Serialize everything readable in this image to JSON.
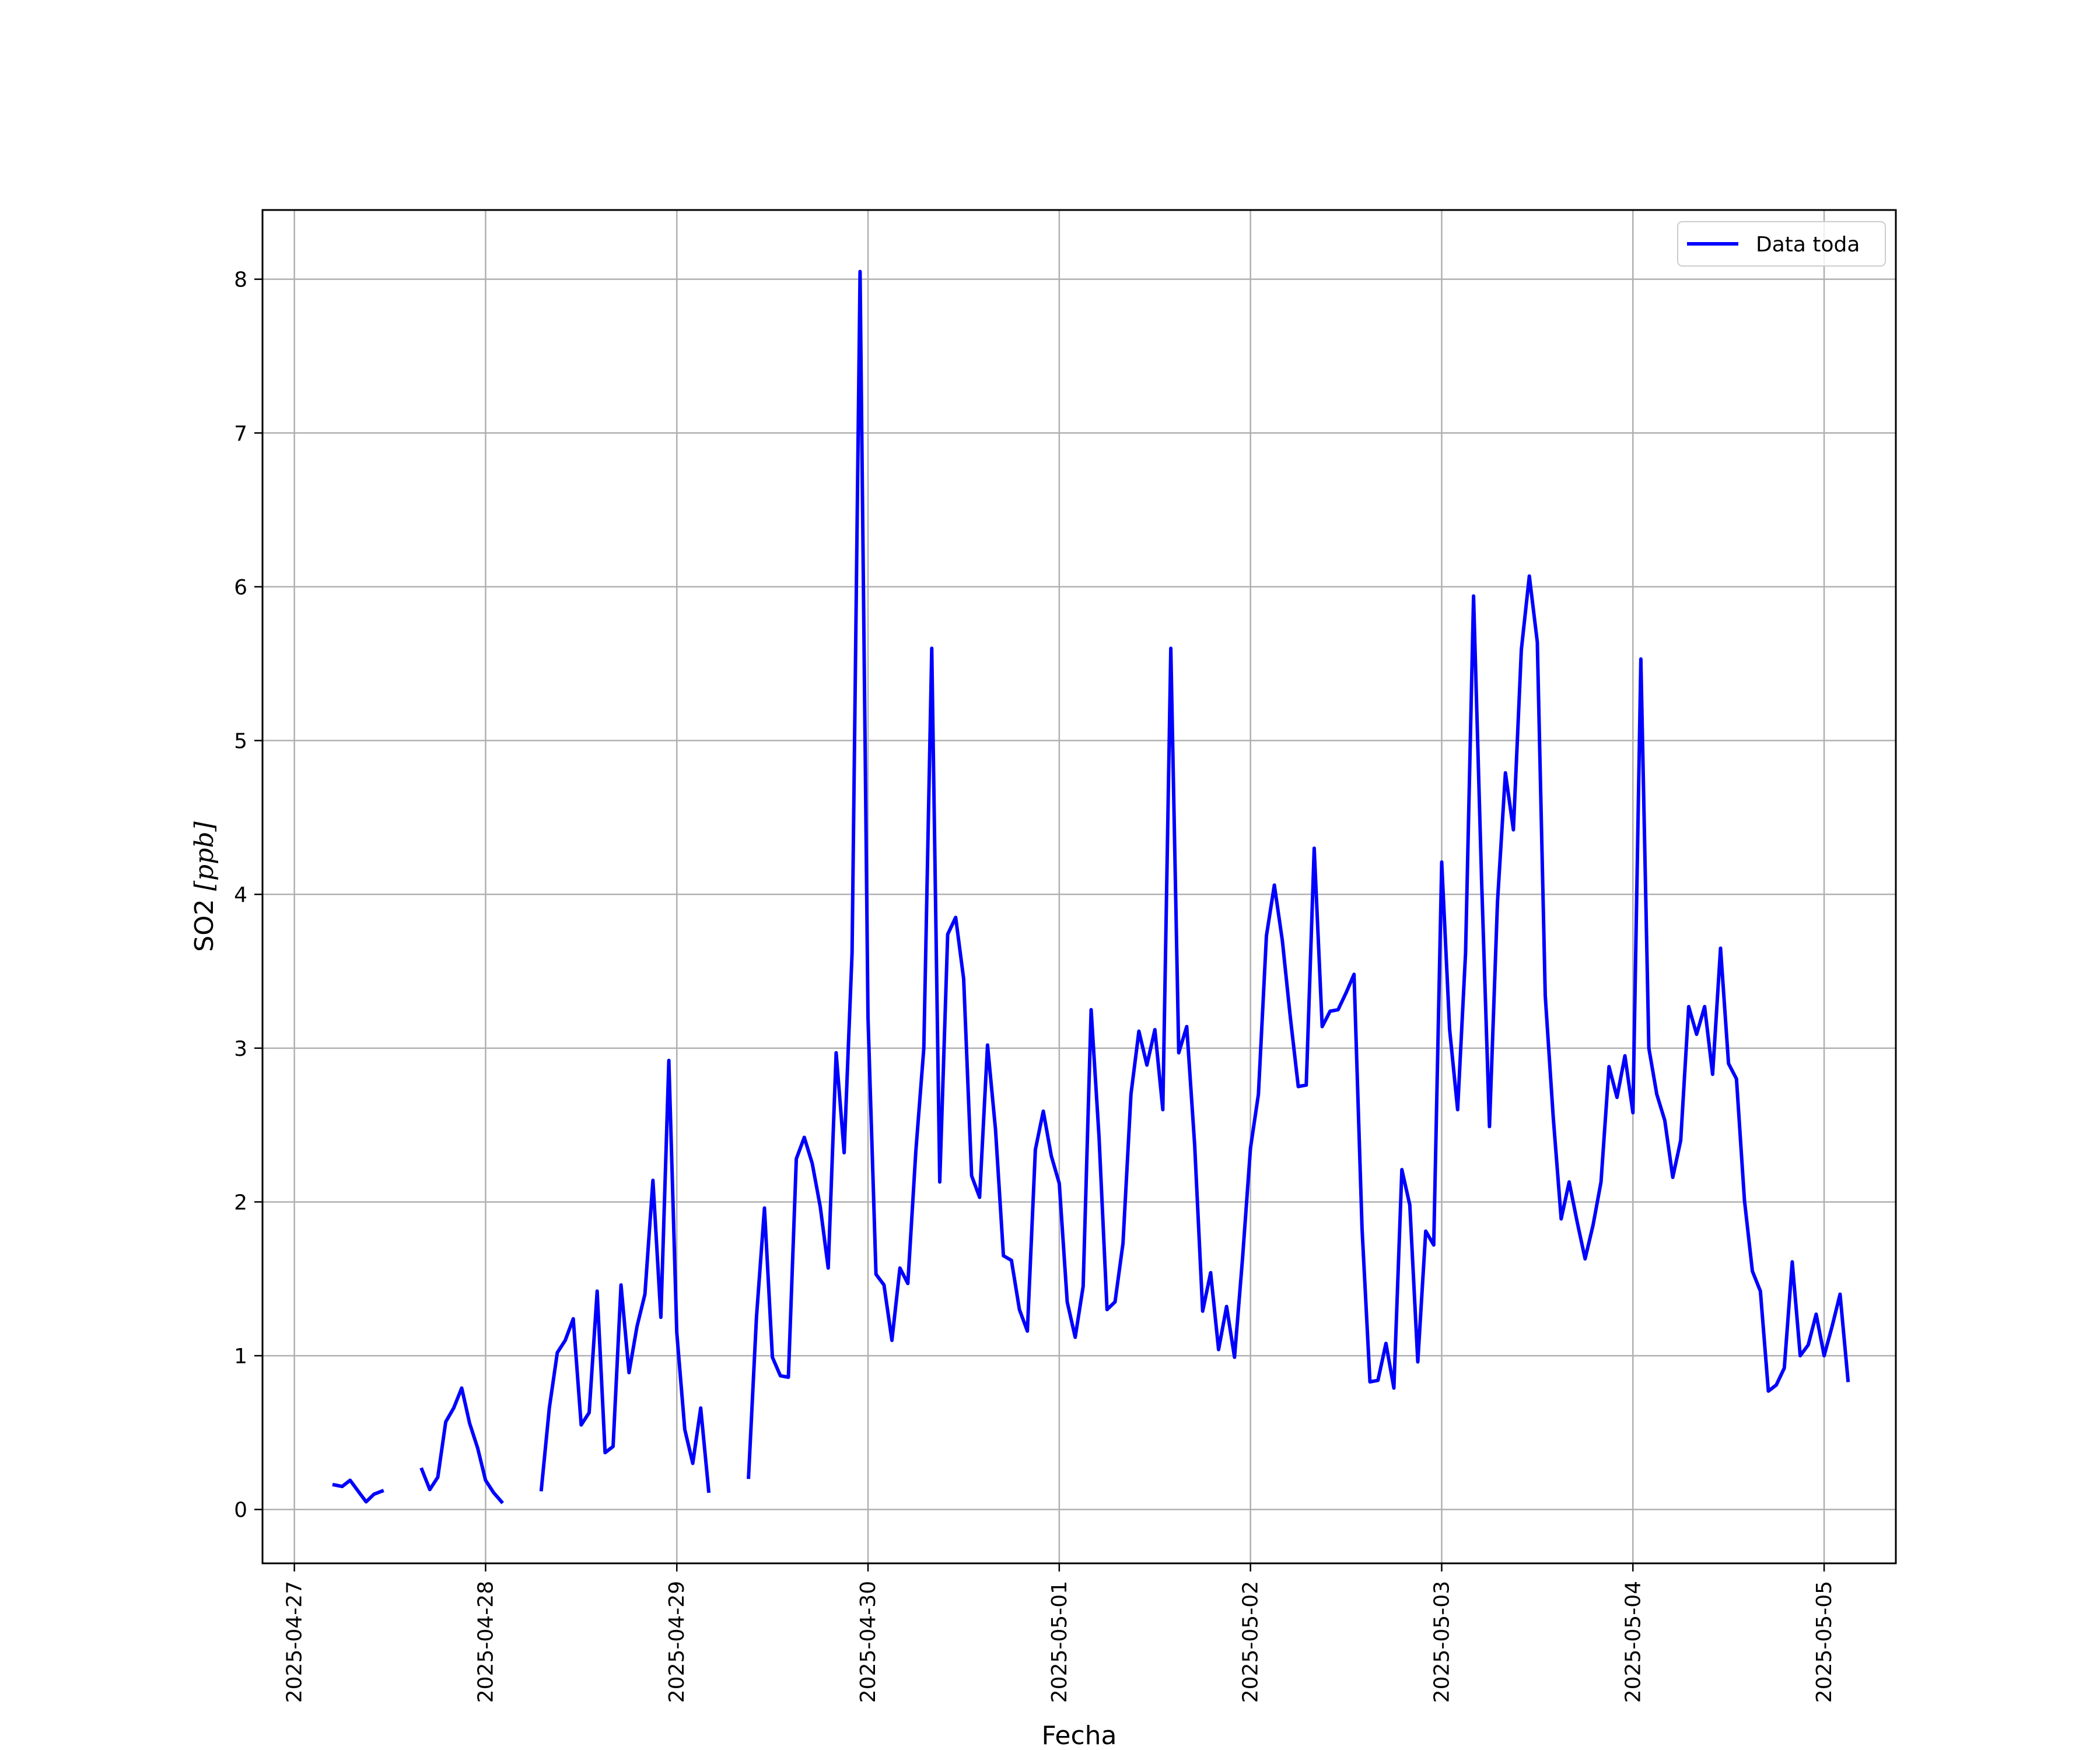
{
  "chart_data": {
    "type": "line",
    "xlabel": "Fecha",
    "ylabel_main": "SO2 ",
    "ylabel_unit": "[ppb]",
    "legend_position": "top-right",
    "grid": true,
    "xlim": [
      "2025-04-26T20:00",
      "2025-05-05T09:00"
    ],
    "ylim": [
      -0.35,
      8.45
    ],
    "x_ticks": [
      "2025-04-27",
      "2025-04-28",
      "2025-04-29",
      "2025-04-30",
      "2025-05-01",
      "2025-05-02",
      "2025-05-03",
      "2025-05-04",
      "2025-05-05"
    ],
    "y_ticks": [
      0,
      1,
      2,
      3,
      4,
      5,
      6,
      7,
      8
    ],
    "line_color": "#0000ff",
    "series": [
      {
        "name": "Data toda",
        "points": [
          [
            "2025-04-27T05:00",
            0.16
          ],
          [
            "2025-04-27T06:00",
            0.15
          ],
          [
            "2025-04-27T07:00",
            0.19
          ],
          [
            "2025-04-27T08:00",
            0.12
          ],
          [
            "2025-04-27T09:00",
            0.05
          ],
          [
            "2025-04-27T10:00",
            0.1
          ],
          [
            "2025-04-27T11:00",
            0.12
          ],
          [
            "2025-04-27T12:00",
            null
          ],
          [
            "2025-04-27T15:00",
            null
          ],
          [
            "2025-04-27T16:00",
            0.26
          ],
          [
            "2025-04-27T17:00",
            0.13
          ],
          [
            "2025-04-27T18:00",
            0.21
          ],
          [
            "2025-04-27T19:00",
            0.57
          ],
          [
            "2025-04-27T20:00",
            0.66
          ],
          [
            "2025-04-27T21:00",
            0.79
          ],
          [
            "2025-04-27T22:00",
            0.56
          ],
          [
            "2025-04-27T23:00",
            0.4
          ],
          [
            "2025-04-28T00:00",
            0.19
          ],
          [
            "2025-04-28T01:00",
            0.11
          ],
          [
            "2025-04-28T02:00",
            0.05
          ],
          [
            "2025-04-28T03:00",
            null
          ],
          [
            "2025-04-28T06:00",
            null
          ],
          [
            "2025-04-28T07:00",
            0.13
          ],
          [
            "2025-04-28T08:00",
            0.66
          ],
          [
            "2025-04-28T09:00",
            1.02
          ],
          [
            "2025-04-28T10:00",
            1.1
          ],
          [
            "2025-04-28T11:00",
            1.24
          ],
          [
            "2025-04-28T12:00",
            0.55
          ],
          [
            "2025-04-28T13:00",
            0.63
          ],
          [
            "2025-04-28T14:00",
            1.42
          ],
          [
            "2025-04-28T15:00",
            0.37
          ],
          [
            "2025-04-28T16:00",
            0.41
          ],
          [
            "2025-04-28T17:00",
            1.46
          ],
          [
            "2025-04-28T18:00",
            0.89
          ],
          [
            "2025-04-28T19:00",
            1.19
          ],
          [
            "2025-04-28T20:00",
            1.4
          ],
          [
            "2025-04-28T21:00",
            2.14
          ],
          [
            "2025-04-28T22:00",
            1.25
          ],
          [
            "2025-04-28T23:00",
            2.92
          ],
          [
            "2025-04-29T00:00",
            1.15
          ],
          [
            "2025-04-29T01:00",
            0.52
          ],
          [
            "2025-04-29T02:00",
            0.3
          ],
          [
            "2025-04-29T03:00",
            0.66
          ],
          [
            "2025-04-29T04:00",
            0.12
          ],
          [
            "2025-04-29T05:00",
            null
          ],
          [
            "2025-04-29T08:00",
            null
          ],
          [
            "2025-04-29T09:00",
            0.21
          ],
          [
            "2025-04-29T10:00",
            1.25
          ],
          [
            "2025-04-29T11:00",
            1.96
          ],
          [
            "2025-04-29T12:00",
            0.99
          ],
          [
            "2025-04-29T13:00",
            0.87
          ],
          [
            "2025-04-29T14:00",
            0.86
          ],
          [
            "2025-04-29T15:00",
            2.28
          ],
          [
            "2025-04-29T16:00",
            2.42
          ],
          [
            "2025-04-29T17:00",
            2.25
          ],
          [
            "2025-04-29T18:00",
            1.97
          ],
          [
            "2025-04-29T19:00",
            1.57
          ],
          [
            "2025-04-29T20:00",
            2.97
          ],
          [
            "2025-04-29T21:00",
            2.32
          ],
          [
            "2025-04-29T22:00",
            3.62
          ],
          [
            "2025-04-29T23:00",
            8.05
          ],
          [
            "2025-04-30T00:00",
            3.2
          ],
          [
            "2025-04-30T01:00",
            1.53
          ],
          [
            "2025-04-30T02:00",
            1.46
          ],
          [
            "2025-04-30T03:00",
            1.1
          ],
          [
            "2025-04-30T04:00",
            1.57
          ],
          [
            "2025-04-30T05:00",
            1.47
          ],
          [
            "2025-04-30T06:00",
            2.33
          ],
          [
            "2025-04-30T07:00",
            3.0
          ],
          [
            "2025-04-30T08:00",
            5.6
          ],
          [
            "2025-04-30T09:00",
            2.13
          ],
          [
            "2025-04-30T10:00",
            3.74
          ],
          [
            "2025-04-30T11:00",
            3.85
          ],
          [
            "2025-04-30T12:00",
            3.45
          ],
          [
            "2025-04-30T13:00",
            2.17
          ],
          [
            "2025-04-30T14:00",
            2.03
          ],
          [
            "2025-04-30T15:00",
            3.02
          ],
          [
            "2025-04-30T16:00",
            2.47
          ],
          [
            "2025-04-30T17:00",
            1.65
          ],
          [
            "2025-04-30T18:00",
            1.62
          ],
          [
            "2025-04-30T19:00",
            1.3
          ],
          [
            "2025-04-30T20:00",
            1.16
          ],
          [
            "2025-04-30T21:00",
            2.34
          ],
          [
            "2025-04-30T22:00",
            2.59
          ],
          [
            "2025-04-30T23:00",
            2.3
          ],
          [
            "2025-05-01T00:00",
            2.12
          ],
          [
            "2025-05-01T01:00",
            1.35
          ],
          [
            "2025-05-01T02:00",
            1.12
          ],
          [
            "2025-05-01T03:00",
            1.45
          ],
          [
            "2025-05-01T04:00",
            3.25
          ],
          [
            "2025-05-01T05:00",
            2.42
          ],
          [
            "2025-05-01T06:00",
            1.3
          ],
          [
            "2025-05-01T07:00",
            1.35
          ],
          [
            "2025-05-01T08:00",
            1.73
          ],
          [
            "2025-05-01T09:00",
            2.7
          ],
          [
            "2025-05-01T10:00",
            3.11
          ],
          [
            "2025-05-01T11:00",
            2.89
          ],
          [
            "2025-05-01T12:00",
            3.12
          ],
          [
            "2025-05-01T13:00",
            2.6
          ],
          [
            "2025-05-01T14:00",
            5.6
          ],
          [
            "2025-05-01T15:00",
            2.97
          ],
          [
            "2025-05-01T16:00",
            3.14
          ],
          [
            "2025-05-01T17:00",
            2.37
          ],
          [
            "2025-05-01T18:00",
            1.29
          ],
          [
            "2025-05-01T19:00",
            1.54
          ],
          [
            "2025-05-01T20:00",
            1.04
          ],
          [
            "2025-05-01T21:00",
            1.32
          ],
          [
            "2025-05-01T22:00",
            0.99
          ],
          [
            "2025-05-01T23:00",
            1.63
          ],
          [
            "2025-05-02T00:00",
            2.35
          ],
          [
            "2025-05-02T01:00",
            2.7
          ],
          [
            "2025-05-02T02:00",
            3.73
          ],
          [
            "2025-05-02T03:00",
            4.06
          ],
          [
            "2025-05-02T04:00",
            3.7
          ],
          [
            "2025-05-02T05:00",
            3.2
          ],
          [
            "2025-05-02T06:00",
            2.75
          ],
          [
            "2025-05-02T07:00",
            2.76
          ],
          [
            "2025-05-02T08:00",
            4.3
          ],
          [
            "2025-05-02T09:00",
            3.14
          ],
          [
            "2025-05-02T10:00",
            3.24
          ],
          [
            "2025-05-02T11:00",
            3.25
          ],
          [
            "2025-05-02T12:00",
            3.36
          ],
          [
            "2025-05-02T13:00",
            3.48
          ],
          [
            "2025-05-02T14:00",
            1.83
          ],
          [
            "2025-05-02T15:00",
            0.83
          ],
          [
            "2025-05-02T16:00",
            0.84
          ],
          [
            "2025-05-02T17:00",
            1.08
          ],
          [
            "2025-05-02T18:00",
            0.79
          ],
          [
            "2025-05-02T19:00",
            2.21
          ],
          [
            "2025-05-02T20:00",
            1.98
          ],
          [
            "2025-05-02T21:00",
            0.96
          ],
          [
            "2025-05-02T22:00",
            1.81
          ],
          [
            "2025-05-02T23:00",
            1.72
          ],
          [
            "2025-05-03T00:00",
            4.21
          ],
          [
            "2025-05-03T01:00",
            3.12
          ],
          [
            "2025-05-03T02:00",
            2.6
          ],
          [
            "2025-05-03T03:00",
            3.62
          ],
          [
            "2025-05-03T04:00",
            5.94
          ],
          [
            "2025-05-03T05:00",
            4.1
          ],
          [
            "2025-05-03T06:00",
            2.49
          ],
          [
            "2025-05-03T07:00",
            3.95
          ],
          [
            "2025-05-03T08:00",
            4.79
          ],
          [
            "2025-05-03T09:00",
            4.42
          ],
          [
            "2025-05-03T10:00",
            5.59
          ],
          [
            "2025-05-03T11:00",
            6.07
          ],
          [
            "2025-05-03T12:00",
            5.64
          ],
          [
            "2025-05-03T13:00",
            3.34
          ],
          [
            "2025-05-03T14:00",
            2.55
          ],
          [
            "2025-05-03T15:00",
            1.89
          ],
          [
            "2025-05-03T16:00",
            2.13
          ],
          [
            "2025-05-03T17:00",
            1.87
          ],
          [
            "2025-05-03T18:00",
            1.63
          ],
          [
            "2025-05-03T19:00",
            1.85
          ],
          [
            "2025-05-03T20:00",
            2.13
          ],
          [
            "2025-05-03T21:00",
            2.88
          ],
          [
            "2025-05-03T22:00",
            2.68
          ],
          [
            "2025-05-03T23:00",
            2.95
          ],
          [
            "2025-05-04T00:00",
            2.58
          ],
          [
            "2025-05-04T01:00",
            5.53
          ],
          [
            "2025-05-04T02:00",
            3.0
          ],
          [
            "2025-05-04T03:00",
            2.7
          ],
          [
            "2025-05-04T04:00",
            2.53
          ],
          [
            "2025-05-04T05:00",
            2.16
          ],
          [
            "2025-05-04T06:00",
            2.4
          ],
          [
            "2025-05-04T07:00",
            3.27
          ],
          [
            "2025-05-04T08:00",
            3.09
          ],
          [
            "2025-05-04T09:00",
            3.27
          ],
          [
            "2025-05-04T10:00",
            2.83
          ],
          [
            "2025-05-04T11:00",
            3.65
          ],
          [
            "2025-05-04T12:00",
            2.9
          ],
          [
            "2025-05-04T13:00",
            2.8
          ],
          [
            "2025-05-04T14:00",
            2.01
          ],
          [
            "2025-05-04T15:00",
            1.55
          ],
          [
            "2025-05-04T16:00",
            1.42
          ],
          [
            "2025-05-04T17:00",
            0.77
          ],
          [
            "2025-05-04T18:00",
            0.81
          ],
          [
            "2025-05-04T19:00",
            0.92
          ],
          [
            "2025-05-04T20:00",
            1.61
          ],
          [
            "2025-05-04T21:00",
            1.0
          ],
          [
            "2025-05-04T22:00",
            1.07
          ],
          [
            "2025-05-04T23:00",
            1.27
          ],
          [
            "2025-05-05T00:00",
            1.0
          ],
          [
            "2025-05-05T01:00",
            1.19
          ],
          [
            "2025-05-05T02:00",
            1.4
          ],
          [
            "2025-05-05T03:00",
            0.84
          ]
        ]
      }
    ]
  }
}
